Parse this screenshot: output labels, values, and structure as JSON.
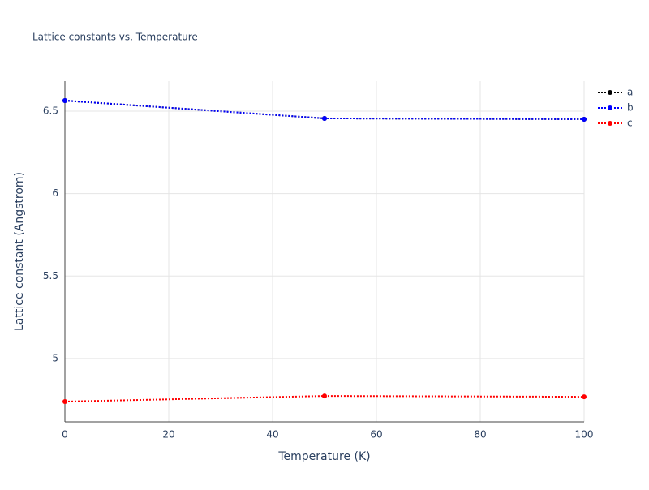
{
  "chart_data": {
    "type": "line",
    "title": "Lattice constants vs. Temperature",
    "x_label": "Temperature (K)",
    "y_label": "Lattice constant (Angstrom)",
    "x": [
      0,
      50,
      100
    ],
    "series": [
      {
        "name": "a",
        "color": "#000000",
        "values": [
          6.564,
          6.456,
          6.451
        ]
      },
      {
        "name": "b",
        "color": "#0000ff",
        "values": [
          6.564,
          6.456,
          6.451
        ]
      },
      {
        "name": "c",
        "color": "#ff0000",
        "values": [
          4.739,
          4.773,
          4.768
        ]
      }
    ],
    "xlim": [
      0,
      100
    ],
    "xticks": [
      0,
      20,
      40,
      60,
      80,
      100
    ],
    "ylim": [
      4.616,
      6.682
    ],
    "yticks": [
      5,
      5.5,
      6,
      6.5
    ],
    "grid": true,
    "legend": "right"
  }
}
